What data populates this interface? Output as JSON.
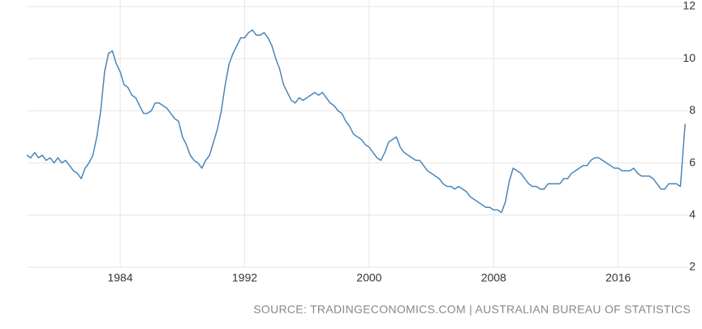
{
  "chart_data": {
    "type": "line",
    "source": "SOURCE: TRADINGECONOMICS.COM | AUSTRALIAN BUREAU OF STATISTICS",
    "x": [
      1978,
      1978.25,
      1978.5,
      1978.75,
      1979,
      1979.25,
      1979.5,
      1979.75,
      1980,
      1980.25,
      1980.5,
      1980.75,
      1981,
      1981.25,
      1981.5,
      1981.75,
      1982,
      1982.25,
      1982.5,
      1982.75,
      1983,
      1983.25,
      1983.5,
      1983.75,
      1984,
      1984.25,
      1984.5,
      1984.75,
      1985,
      1985.25,
      1985.5,
      1985.75,
      1986,
      1986.25,
      1986.5,
      1986.75,
      1987,
      1987.25,
      1987.5,
      1987.75,
      1988,
      1988.25,
      1988.5,
      1988.75,
      1989,
      1989.25,
      1989.5,
      1989.75,
      1990,
      1990.25,
      1990.5,
      1990.75,
      1991,
      1991.25,
      1991.5,
      1991.75,
      1992,
      1992.25,
      1992.5,
      1992.75,
      1993,
      1993.25,
      1993.5,
      1993.75,
      1994,
      1994.25,
      1994.5,
      1994.75,
      1995,
      1995.25,
      1995.5,
      1995.75,
      1996,
      1996.25,
      1996.5,
      1996.75,
      1997,
      1997.25,
      1997.5,
      1997.75,
      1998,
      1998.25,
      1998.5,
      1998.75,
      1999,
      1999.25,
      1999.5,
      1999.75,
      2000,
      2000.25,
      2000.5,
      2000.75,
      2001,
      2001.25,
      2001.5,
      2001.75,
      2002,
      2002.25,
      2002.5,
      2002.75,
      2003,
      2003.25,
      2003.5,
      2003.75,
      2004,
      2004.25,
      2004.5,
      2004.75,
      2005,
      2005.25,
      2005.5,
      2005.75,
      2006,
      2006.25,
      2006.5,
      2006.75,
      2007,
      2007.25,
      2007.5,
      2007.75,
      2008,
      2008.25,
      2008.5,
      2008.75,
      2009,
      2009.25,
      2009.5,
      2009.75,
      2010,
      2010.25,
      2010.5,
      2010.75,
      2011,
      2011.25,
      2011.5,
      2011.75,
      2012,
      2012.25,
      2012.5,
      2012.75,
      2013,
      2013.25,
      2013.5,
      2013.75,
      2014,
      2014.25,
      2014.5,
      2014.75,
      2015,
      2015.25,
      2015.5,
      2015.75,
      2016,
      2016.25,
      2016.5,
      2016.75,
      2017,
      2017.25,
      2017.5,
      2017.75,
      2018,
      2018.25,
      2018.5,
      2018.75,
      2019,
      2019.25,
      2019.5,
      2019.75,
      2020,
      2020.3
    ],
    "series": [
      {
        "color": "#4a86b8",
        "values": [
          6.3,
          6.2,
          6.4,
          6.2,
          6.3,
          6.1,
          6.2,
          6.0,
          6.2,
          6.0,
          6.1,
          5.9,
          5.7,
          5.6,
          5.4,
          5.8,
          6.0,
          6.3,
          7.0,
          8.0,
          9.5,
          10.2,
          10.3,
          9.8,
          9.5,
          9.0,
          8.9,
          8.6,
          8.5,
          8.2,
          7.9,
          7.9,
          8.0,
          8.3,
          8.3,
          8.2,
          8.1,
          7.9,
          7.7,
          7.6,
          7.0,
          6.7,
          6.3,
          6.1,
          6.0,
          5.8,
          6.1,
          6.3,
          6.8,
          7.3,
          8.0,
          9.0,
          9.8,
          10.2,
          10.5,
          10.8,
          10.8,
          11.0,
          11.1,
          10.9,
          10.9,
          11.0,
          10.8,
          10.5,
          10.0,
          9.6,
          9.0,
          8.7,
          8.4,
          8.3,
          8.5,
          8.4,
          8.5,
          8.6,
          8.7,
          8.6,
          8.7,
          8.5,
          8.3,
          8.2,
          8.0,
          7.9,
          7.6,
          7.4,
          7.1,
          7.0,
          6.9,
          6.7,
          6.6,
          6.4,
          6.2,
          6.1,
          6.4,
          6.8,
          6.9,
          7.0,
          6.6,
          6.4,
          6.3,
          6.2,
          6.1,
          6.1,
          5.9,
          5.7,
          5.6,
          5.5,
          5.4,
          5.2,
          5.1,
          5.1,
          5.0,
          5.1,
          5.0,
          4.9,
          4.7,
          4.6,
          4.5,
          4.4,
          4.3,
          4.3,
          4.2,
          4.2,
          4.1,
          4.5,
          5.3,
          5.8,
          5.7,
          5.6,
          5.4,
          5.2,
          5.1,
          5.1,
          5.0,
          5.0,
          5.2,
          5.2,
          5.2,
          5.2,
          5.4,
          5.4,
          5.6,
          5.7,
          5.8,
          5.9,
          5.9,
          6.1,
          6.2,
          6.2,
          6.1,
          6.0,
          5.9,
          5.8,
          5.8,
          5.7,
          5.7,
          5.7,
          5.8,
          5.6,
          5.5,
          5.5,
          5.5,
          5.4,
          5.2,
          5.0,
          5.0,
          5.2,
          5.2,
          5.2,
          5.1,
          7.5
        ]
      }
    ],
    "xlim": [
      1978,
      2020.5
    ],
    "xticks": [
      1984,
      1992,
      2000,
      2008,
      2016
    ],
    "ylim": [
      2,
      12
    ],
    "yticks": [
      2,
      4,
      6,
      8,
      10,
      12
    ],
    "grid": true
  }
}
